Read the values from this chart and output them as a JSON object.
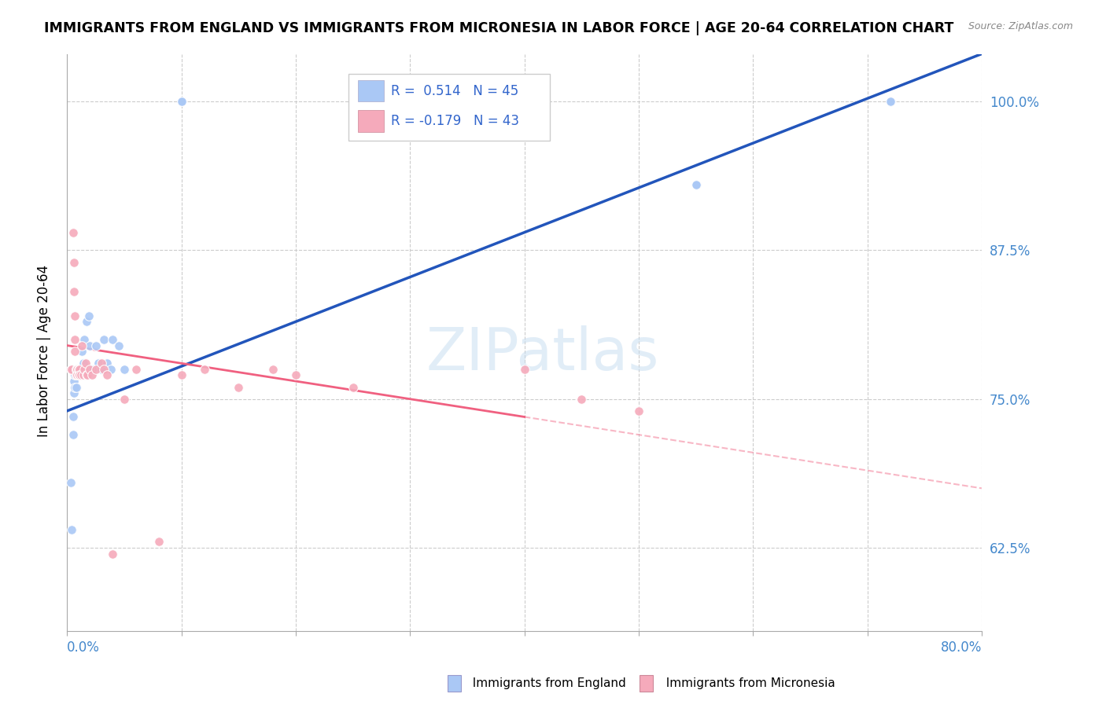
{
  "title": "IMMIGRANTS FROM ENGLAND VS IMMIGRANTS FROM MICRONESIA IN LABOR FORCE | AGE 20-64 CORRELATION CHART",
  "source": "Source: ZipAtlas.com",
  "ylabel": "In Labor Force | Age 20-64",
  "ytick_labels": [
    "62.5%",
    "75.0%",
    "87.5%",
    "100.0%"
  ],
  "ytick_values": [
    0.625,
    0.75,
    0.875,
    1.0
  ],
  "xlim": [
    0.0,
    0.8
  ],
  "ylim": [
    0.555,
    1.04
  ],
  "legend_england_r": "0.514",
  "legend_england_n": "45",
  "legend_micronesia_r": "-0.179",
  "legend_micronesia_n": "43",
  "england_color": "#aac8f5",
  "micronesia_color": "#f5aabb",
  "england_line_color": "#2255bb",
  "micronesia_line_color": "#f06080",
  "watermark": "ZIPatlas",
  "england_scatter_x": [
    0.003,
    0.004,
    0.005,
    0.005,
    0.006,
    0.006,
    0.007,
    0.007,
    0.008,
    0.008,
    0.008,
    0.009,
    0.009,
    0.01,
    0.01,
    0.011,
    0.011,
    0.012,
    0.013,
    0.014,
    0.015,
    0.017,
    0.019,
    0.02,
    0.022,
    0.025,
    0.027,
    0.03,
    0.032,
    0.035,
    0.038,
    0.04,
    0.045,
    0.05,
    0.1,
    0.1,
    0.1,
    0.1,
    0.1,
    0.1,
    0.55,
    0.55,
    0.55,
    0.72,
    0.72
  ],
  "england_scatter_y": [
    0.68,
    0.64,
    0.735,
    0.72,
    0.765,
    0.755,
    0.77,
    0.76,
    0.775,
    0.77,
    0.76,
    0.775,
    0.77,
    0.775,
    0.77,
    0.775,
    0.77,
    0.775,
    0.79,
    0.78,
    0.8,
    0.815,
    0.82,
    0.795,
    0.775,
    0.795,
    0.78,
    0.775,
    0.8,
    0.78,
    0.775,
    0.8,
    0.795,
    0.775,
    1.0,
    1.0,
    1.0,
    1.0,
    1.0,
    1.0,
    0.93,
    0.93,
    0.93,
    1.0,
    1.0
  ],
  "micronesia_scatter_x": [
    0.003,
    0.004,
    0.005,
    0.006,
    0.006,
    0.007,
    0.007,
    0.007,
    0.008,
    0.008,
    0.008,
    0.009,
    0.009,
    0.01,
    0.01,
    0.011,
    0.011,
    0.012,
    0.013,
    0.014,
    0.015,
    0.016,
    0.017,
    0.018,
    0.02,
    0.022,
    0.025,
    0.03,
    0.032,
    0.035,
    0.04,
    0.05,
    0.06,
    0.08,
    0.1,
    0.12,
    0.15,
    0.18,
    0.2,
    0.25,
    0.4,
    0.45,
    0.5
  ],
  "micronesia_scatter_y": [
    0.775,
    0.775,
    0.89,
    0.865,
    0.84,
    0.82,
    0.8,
    0.79,
    0.775,
    0.775,
    0.77,
    0.775,
    0.77,
    0.775,
    0.77,
    0.775,
    0.77,
    0.77,
    0.795,
    0.77,
    0.775,
    0.78,
    0.77,
    0.77,
    0.775,
    0.77,
    0.775,
    0.78,
    0.775,
    0.77,
    0.62,
    0.75,
    0.775,
    0.63,
    0.77,
    0.775,
    0.76,
    0.775,
    0.77,
    0.76,
    0.775,
    0.75,
    0.74
  ],
  "england_line_x0": 0.0,
  "england_line_y0": 0.74,
  "england_line_x1": 0.8,
  "england_line_y1": 1.04,
  "micronesia_line_x0": 0.0,
  "micronesia_line_y0": 0.795,
  "micronesia_line_x1_solid": 0.4,
  "micronesia_line_y1_solid": 0.735,
  "micronesia_line_x1_dash": 0.8,
  "micronesia_line_y1_dash": 0.675
}
